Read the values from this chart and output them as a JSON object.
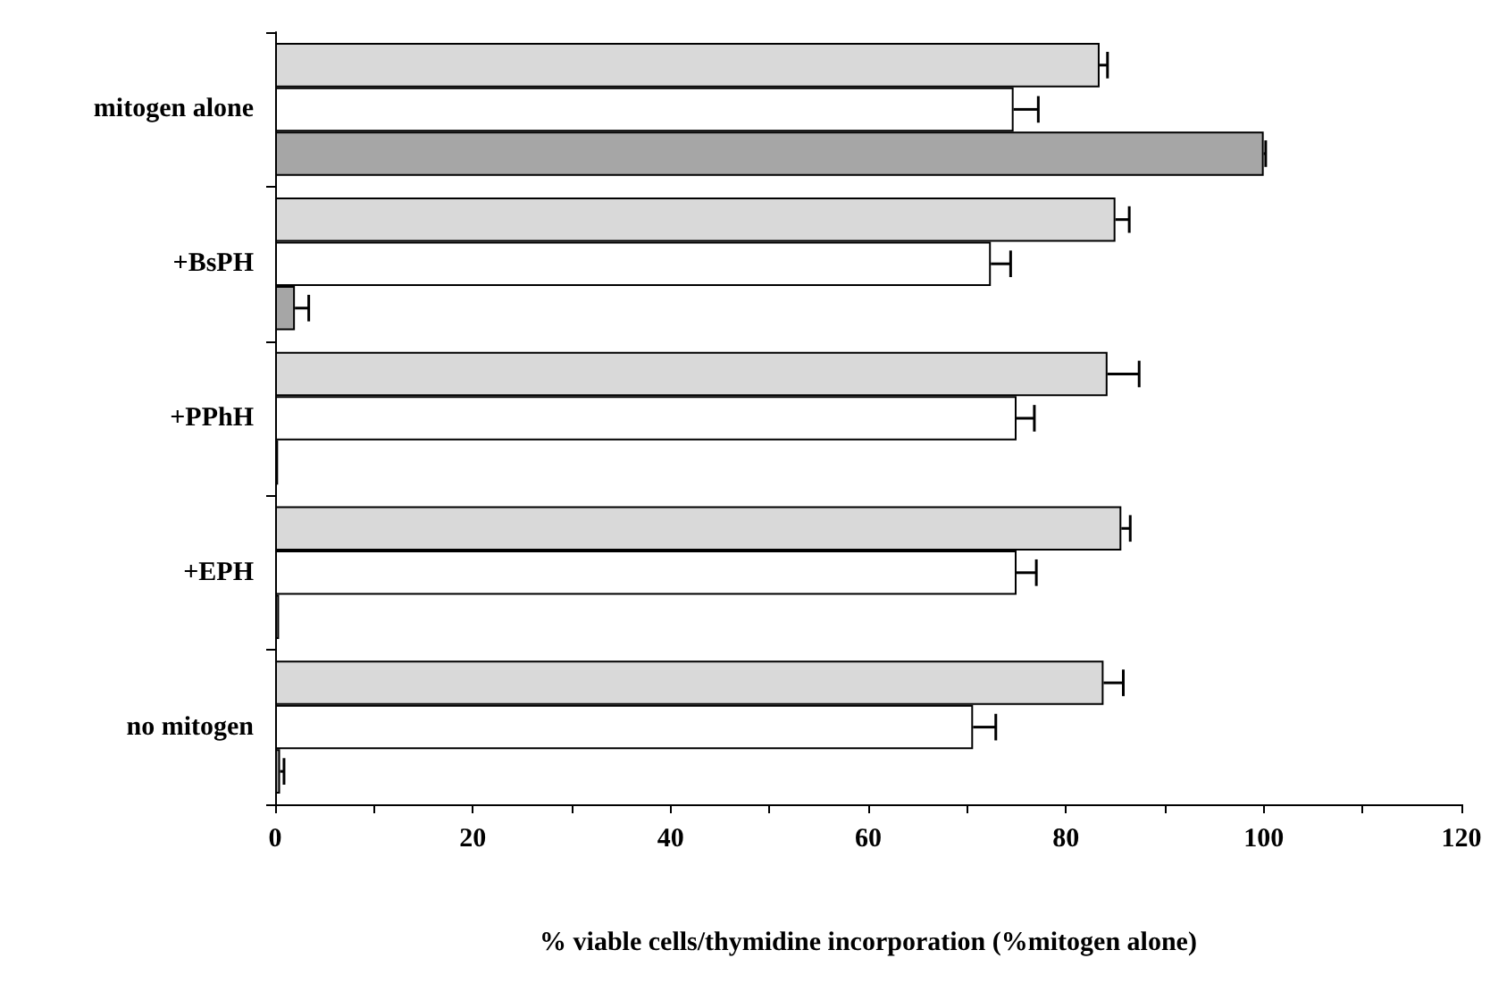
{
  "chart_data": {
    "type": "bar",
    "orientation": "horizontal",
    "xlabel": "% viable cells/thymidine incorporation (%mitogen alone)",
    "categories": [
      "mitogen alone",
      "+BsPH",
      "+PPhH",
      "+EPH",
      "no mitogen"
    ],
    "series": [
      {
        "color": "#d9d9d9",
        "values": [
          83.4,
          85.0,
          84.2,
          85.6,
          83.8
        ],
        "errors": [
          0.8,
          1.4,
          3.2,
          0.9,
          2.0
        ]
      },
      {
        "color": "#ffffff",
        "values": [
          74.7,
          72.4,
          75.0,
          75.0,
          70.6
        ],
        "errors": [
          2.5,
          2.0,
          1.8,
          2.0,
          2.3
        ]
      },
      {
        "color": "#a6a6a6",
        "values": [
          100,
          2.0,
          0.3,
          0.4,
          0.5
        ],
        "errors": [
          0.2,
          1.4,
          null,
          null,
          0.4
        ]
      }
    ],
    "xlim": [
      0,
      120
    ],
    "xticks": [
      0,
      {
        "value": 10,
        "label": null
      },
      20,
      {
        "value": 30,
        "label": null
      },
      40,
      {
        "value": 50,
        "label": null
      },
      60,
      {
        "value": 70,
        "label": null
      },
      80,
      {
        "value": 90,
        "label": null
      },
      100,
      {
        "value": 110,
        "label": null
      },
      120
    ],
    "grid": false
  }
}
